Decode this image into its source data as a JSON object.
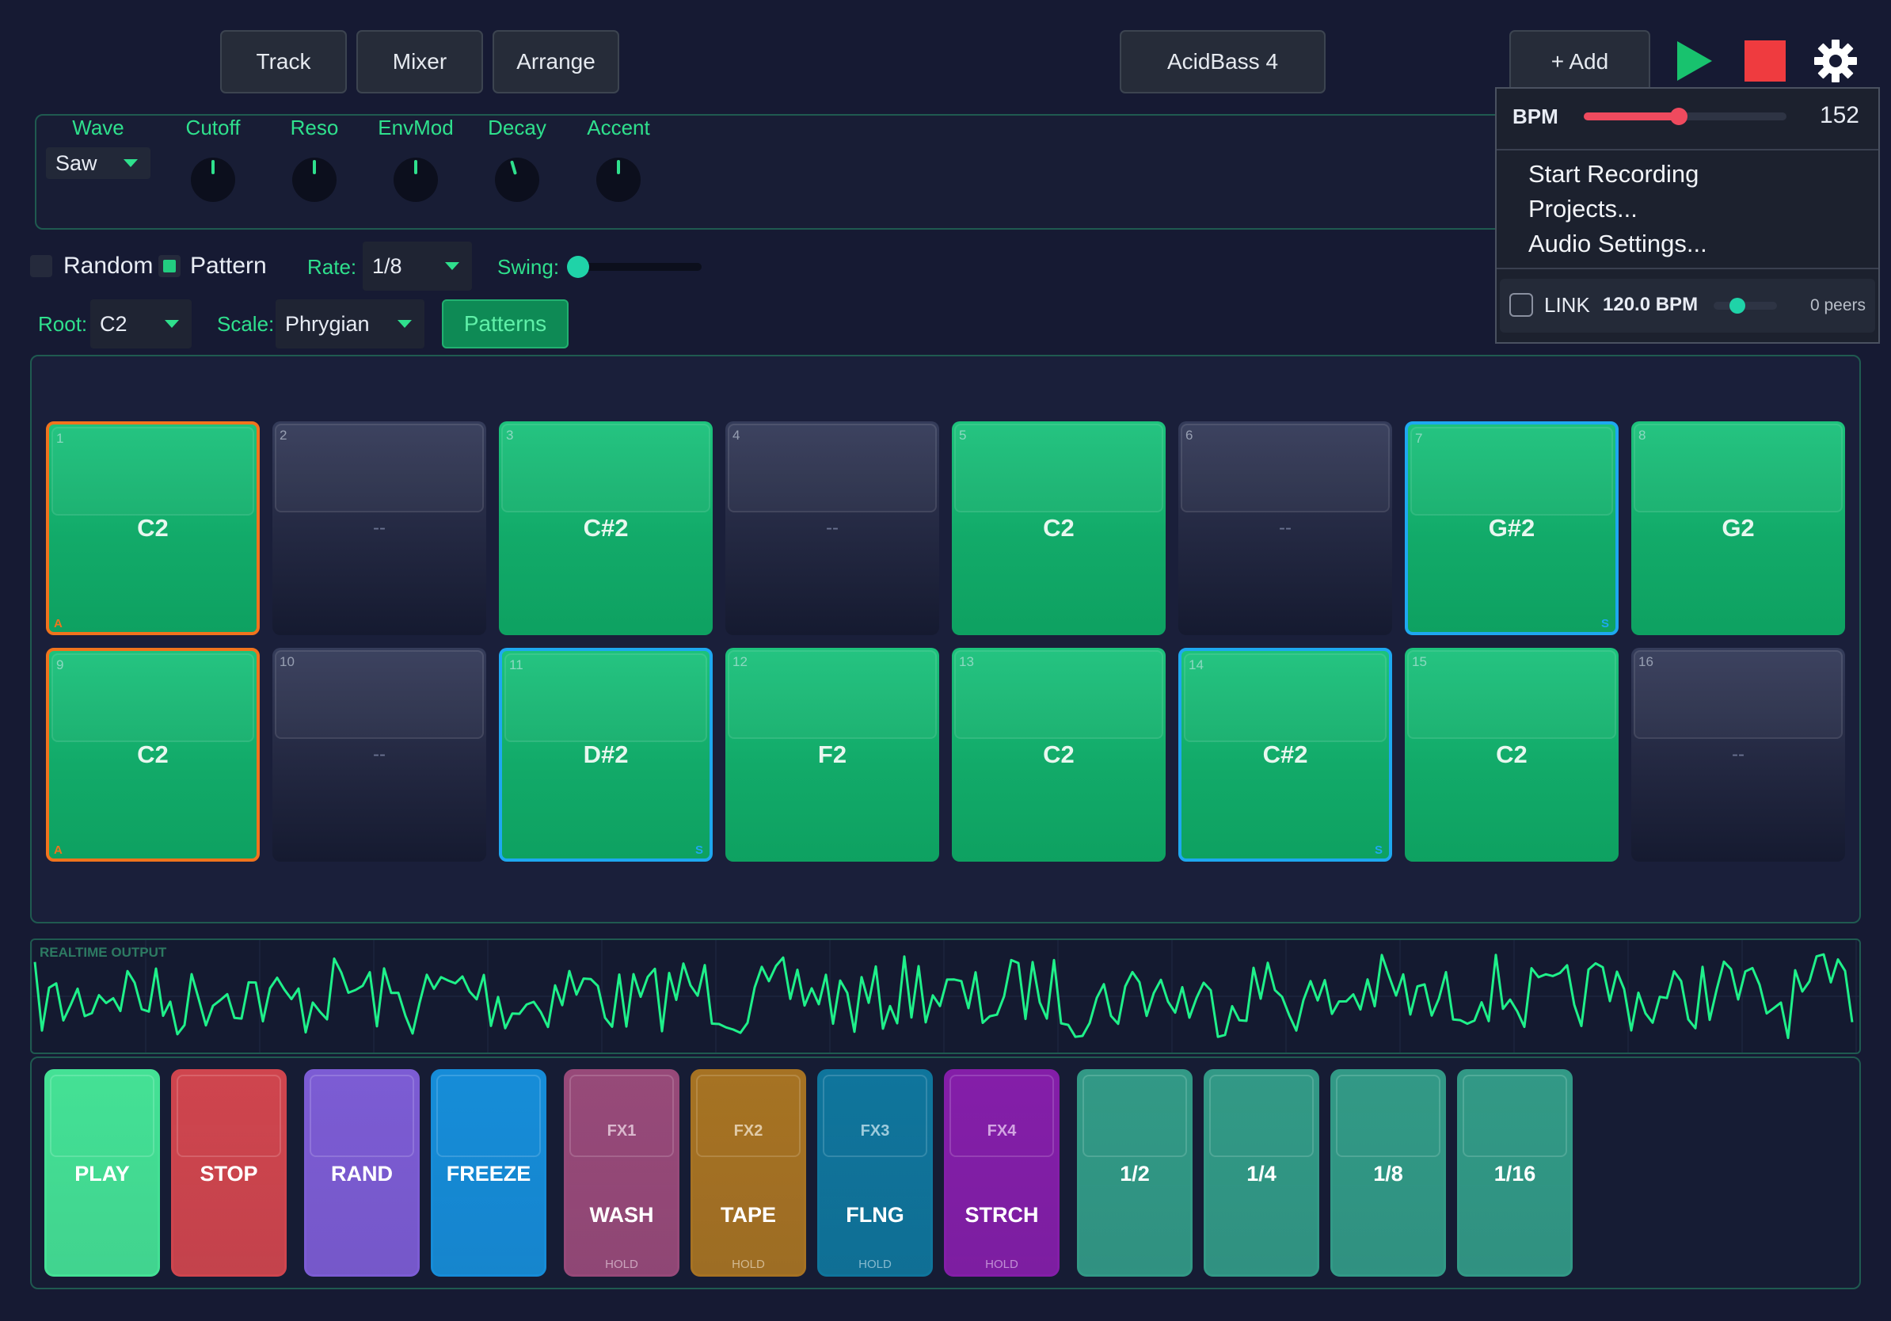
{
  "nav": {
    "tabs": [
      "Track",
      "Mixer",
      "Arrange"
    ],
    "track_name": "AcidBass 4"
  },
  "toolbar": {
    "add_label": "+ Add",
    "play_icon": "play-icon",
    "stop_icon": "stop-icon",
    "settings_icon": "gear-icon"
  },
  "synth": {
    "wave": {
      "label": "Wave",
      "value": "Saw"
    },
    "knobs": [
      {
        "label": "Cutoff",
        "value": 0.5
      },
      {
        "label": "Reso",
        "value": 0.5
      },
      {
        "label": "EnvMod",
        "value": 0.5
      },
      {
        "label": "Decay",
        "value": 0.44
      },
      {
        "label": "Accent",
        "value": 0.5
      }
    ]
  },
  "sequencer_controls": {
    "random_label": "Random",
    "random_checked": false,
    "pattern_label": "Pattern",
    "pattern_checked": true,
    "rate_label": "Rate:",
    "rate_value": "1/8",
    "swing_label": "Swing:",
    "swing_value": 0.0,
    "root_label": "Root:",
    "root_value": "C2",
    "scale_label": "Scale:",
    "scale_value": "Phrygian",
    "patterns_button": "Patterns"
  },
  "pads": [
    {
      "num": "1",
      "note": "C2",
      "on": true,
      "accent": true,
      "slide": false
    },
    {
      "num": "2",
      "note": "--",
      "on": false,
      "accent": false,
      "slide": false
    },
    {
      "num": "3",
      "note": "C#2",
      "on": true,
      "accent": false,
      "slide": false
    },
    {
      "num": "4",
      "note": "--",
      "on": false,
      "accent": false,
      "slide": false
    },
    {
      "num": "5",
      "note": "C2",
      "on": true,
      "accent": false,
      "slide": false
    },
    {
      "num": "6",
      "note": "--",
      "on": false,
      "accent": false,
      "slide": false
    },
    {
      "num": "7",
      "note": "G#2",
      "on": true,
      "accent": false,
      "slide": true
    },
    {
      "num": "8",
      "note": "G2",
      "on": true,
      "accent": false,
      "slide": false
    },
    {
      "num": "9",
      "note": "C2",
      "on": true,
      "accent": true,
      "slide": false
    },
    {
      "num": "10",
      "note": "--",
      "on": false,
      "accent": false,
      "slide": false
    },
    {
      "num": "11",
      "note": "D#2",
      "on": true,
      "accent": false,
      "slide": true
    },
    {
      "num": "12",
      "note": "F2",
      "on": true,
      "accent": false,
      "slide": false
    },
    {
      "num": "13",
      "note": "C2",
      "on": true,
      "accent": false,
      "slide": false
    },
    {
      "num": "14",
      "note": "C#2",
      "on": true,
      "accent": false,
      "slide": true
    },
    {
      "num": "15",
      "note": "C2",
      "on": true,
      "accent": false,
      "slide": false
    },
    {
      "num": "16",
      "note": "--",
      "on": false,
      "accent": false,
      "slide": false
    }
  ],
  "pad_marks": {
    "accent": "A",
    "slide": "S"
  },
  "output": {
    "label": "REALTIME OUTPUT"
  },
  "performance": [
    {
      "label": "PLAY",
      "color": "#3fd08a"
    },
    {
      "label": "STOP",
      "color": "#c04048"
    },
    {
      "label": "RAND",
      "color": "#7355c4"
    },
    {
      "label": "FREEZE",
      "color": "#1482c8"
    },
    {
      "fx": "FX1",
      "label": "WASH",
      "hold": "HOLD",
      "color": "#8c4470"
    },
    {
      "fx": "FX2",
      "label": "TAPE",
      "hold": "HOLD",
      "color": "#9a6a20"
    },
    {
      "fx": "FX3",
      "label": "FLNG",
      "hold": "HOLD",
      "color": "#0e6c90"
    },
    {
      "fx": "FX4",
      "label": "STRCH",
      "hold": "HOLD",
      "color": "#7a1c9c"
    },
    {
      "label": "1/2",
      "color": "#2e8e7c"
    },
    {
      "label": "1/4",
      "color": "#2e8e7c"
    },
    {
      "label": "1/8",
      "color": "#2e8e7c"
    },
    {
      "label": "1/16",
      "color": "#2e8e7c"
    }
  ],
  "dropdown_menu": {
    "bpm_label": "BPM",
    "bpm_value": "152",
    "bpm_level": 0.47,
    "items": [
      "Start Recording",
      "Projects...",
      "Audio Settings..."
    ],
    "link_label": "LINK",
    "link_bpm": "120.0 BPM",
    "link_checked": false,
    "link_slider_level": 0.38,
    "peers": "0 peers"
  },
  "colors": {
    "accent_green": "#2fe08d",
    "accent_marker": "#f0731d",
    "slide_marker": "#1ea8f0",
    "play_green": "#18c26e",
    "stop_red": "#ef3b3f"
  }
}
